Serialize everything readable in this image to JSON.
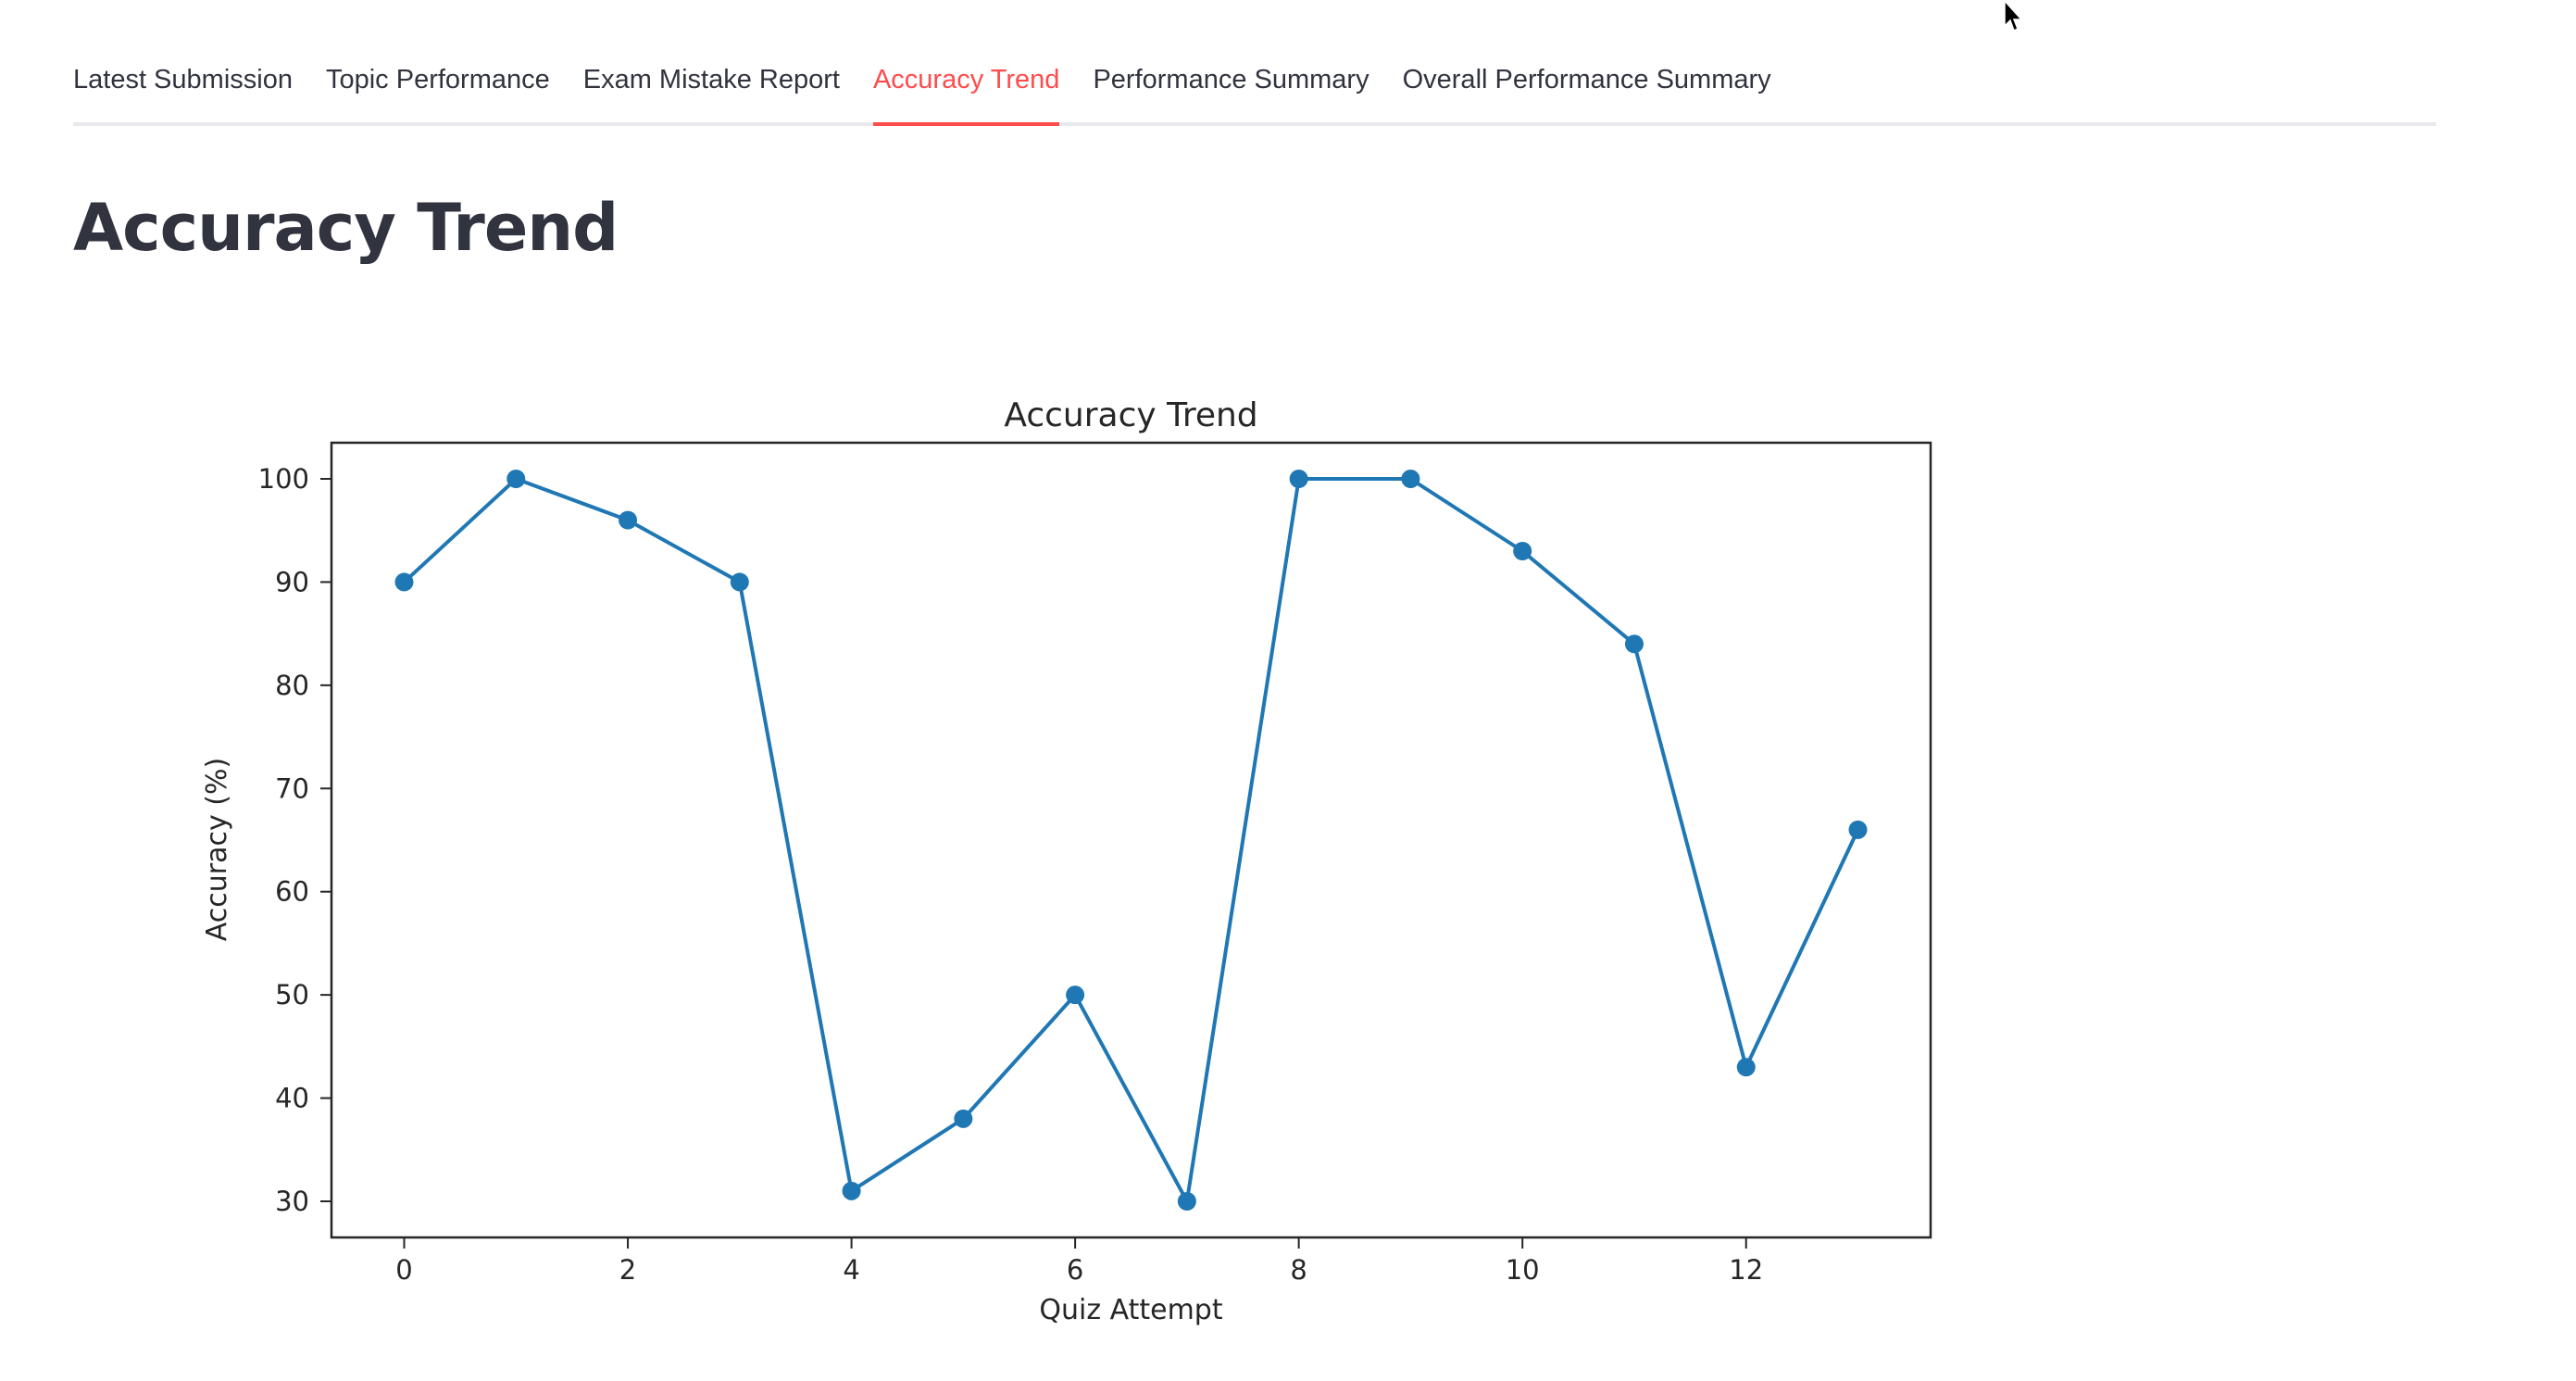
{
  "tabs": [
    {
      "label": "Latest Submission",
      "active": false
    },
    {
      "label": "Topic Performance",
      "active": false
    },
    {
      "label": "Exam Mistake Report",
      "active": false
    },
    {
      "label": "Accuracy Trend",
      "active": true
    },
    {
      "label": "Performance Summary",
      "active": false
    },
    {
      "label": "Overall Performance Summary",
      "active": false
    }
  ],
  "page": {
    "title": "Accuracy Trend"
  },
  "colors": {
    "accent": "#ff4b4b",
    "series": "#1f77b4",
    "text": "#31333f"
  },
  "chart_data": {
    "type": "line",
    "title": "Accuracy Trend",
    "xlabel": "Quiz Attempt",
    "ylabel": "Accuracy (%)",
    "x": [
      0,
      1,
      2,
      3,
      4,
      5,
      6,
      7,
      8,
      9,
      10,
      11,
      12,
      13
    ],
    "series": [
      {
        "values": [
          90,
          100,
          96,
          90,
          31,
          38,
          50,
          30,
          100,
          100,
          93,
          84,
          43,
          66
        ]
      }
    ],
    "xlim": [
      -0.65,
      13.65
    ],
    "ylim": [
      26.5,
      103.5
    ],
    "xticks": [
      0,
      2,
      4,
      6,
      8,
      10,
      12
    ],
    "yticks": [
      30,
      40,
      50,
      60,
      70,
      80,
      90,
      100
    ],
    "marker": "circle",
    "grid": false,
    "legend": "none"
  }
}
